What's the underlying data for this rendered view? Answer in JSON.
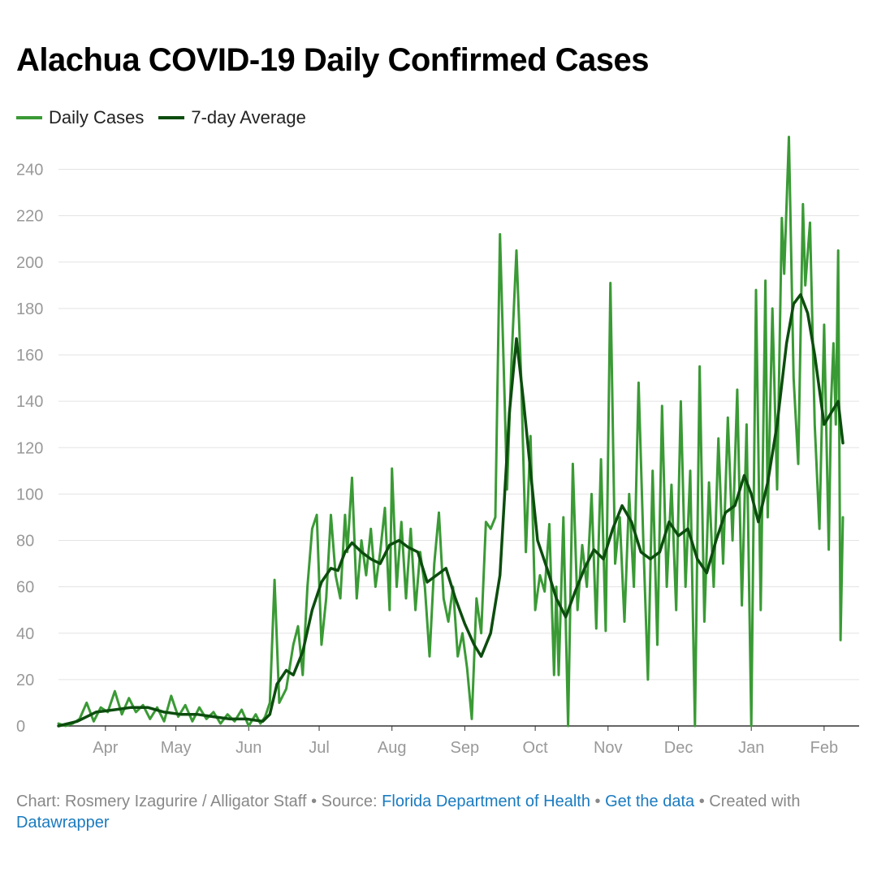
{
  "title": "Alachua COVID-19 Daily Confirmed Cases",
  "legend": [
    {
      "label": "Daily Cases",
      "color": "#3a9a35"
    },
    {
      "label": "7-day Average",
      "color": "#0c4d0e"
    }
  ],
  "footer": {
    "prefix": "Chart: Rosmery Izagurire / Alligator Staff • Source: ",
    "source_link": "Florida Department of Health",
    "sep": " • ",
    "data_link": "Get the data",
    "created": " • Created with ",
    "tool_link": "Datawrapper"
  },
  "chart_data": {
    "type": "line",
    "xlabel": "",
    "ylabel": "",
    "ylim": [
      0,
      250
    ],
    "yticks": [
      0,
      20,
      40,
      60,
      80,
      100,
      120,
      140,
      160,
      180,
      200,
      220,
      240
    ],
    "xlim": [
      "2020-03-12",
      "2021-02-03"
    ],
    "xticks": [
      {
        "label": "Apr",
        "date": "2020-04-01"
      },
      {
        "label": "May",
        "date": "2020-05-01"
      },
      {
        "label": "Jun",
        "date": "2020-06-01"
      },
      {
        "label": "Jul",
        "date": "2020-07-01"
      },
      {
        "label": "Aug",
        "date": "2020-08-01"
      },
      {
        "label": "Sep",
        "date": "2020-09-01"
      },
      {
        "label": "Oct",
        "date": "2020-10-01"
      },
      {
        "label": "Nov",
        "date": "2020-11-01"
      },
      {
        "label": "Dec",
        "date": "2020-12-01"
      },
      {
        "label": "Jan",
        "date": "2021-01-01"
      },
      {
        "label": "Feb",
        "date": "2021-02-01"
      }
    ],
    "grid": true,
    "legend_position": "top-left",
    "series": [
      {
        "name": "Daily Cases",
        "color": "#3a9a35",
        "points": [
          [
            "2020-03-12",
            1
          ],
          [
            "2020-03-15",
            0
          ],
          [
            "2020-03-18",
            1
          ],
          [
            "2020-03-21",
            3
          ],
          [
            "2020-03-24",
            10
          ],
          [
            "2020-03-27",
            2
          ],
          [
            "2020-03-30",
            8
          ],
          [
            "2020-04-02",
            6
          ],
          [
            "2020-04-05",
            15
          ],
          [
            "2020-04-08",
            5
          ],
          [
            "2020-04-11",
            12
          ],
          [
            "2020-04-14",
            6
          ],
          [
            "2020-04-17",
            9
          ],
          [
            "2020-04-20",
            3
          ],
          [
            "2020-04-23",
            8
          ],
          [
            "2020-04-26",
            2
          ],
          [
            "2020-04-29",
            13
          ],
          [
            "2020-05-02",
            4
          ],
          [
            "2020-05-05",
            9
          ],
          [
            "2020-05-08",
            2
          ],
          [
            "2020-05-11",
            8
          ],
          [
            "2020-05-14",
            3
          ],
          [
            "2020-05-17",
            6
          ],
          [
            "2020-05-20",
            1
          ],
          [
            "2020-05-23",
            5
          ],
          [
            "2020-05-26",
            2
          ],
          [
            "2020-05-29",
            7
          ],
          [
            "2020-06-01",
            0
          ],
          [
            "2020-06-04",
            5
          ],
          [
            "2020-06-06",
            1
          ],
          [
            "2020-06-08",
            4
          ],
          [
            "2020-06-10",
            10
          ],
          [
            "2020-06-12",
            63
          ],
          [
            "2020-06-14",
            10
          ],
          [
            "2020-06-17",
            16
          ],
          [
            "2020-06-20",
            35
          ],
          [
            "2020-06-22",
            43
          ],
          [
            "2020-06-24",
            22
          ],
          [
            "2020-06-26",
            60
          ],
          [
            "2020-06-28",
            85
          ],
          [
            "2020-06-30",
            91
          ],
          [
            "2020-07-02",
            35
          ],
          [
            "2020-07-04",
            55
          ],
          [
            "2020-07-06",
            91
          ],
          [
            "2020-07-08",
            65
          ],
          [
            "2020-07-10",
            55
          ],
          [
            "2020-07-12",
            91
          ],
          [
            "2020-07-13",
            75
          ],
          [
            "2020-07-15",
            107
          ],
          [
            "2020-07-17",
            55
          ],
          [
            "2020-07-19",
            80
          ],
          [
            "2020-07-21",
            65
          ],
          [
            "2020-07-23",
            85
          ],
          [
            "2020-07-25",
            60
          ],
          [
            "2020-07-27",
            75
          ],
          [
            "2020-07-29",
            94
          ],
          [
            "2020-07-31",
            50
          ],
          [
            "2020-08-01",
            111
          ],
          [
            "2020-08-03",
            60
          ],
          [
            "2020-08-05",
            88
          ],
          [
            "2020-08-07",
            55
          ],
          [
            "2020-08-09",
            85
          ],
          [
            "2020-08-11",
            50
          ],
          [
            "2020-08-13",
            75
          ],
          [
            "2020-08-15",
            60
          ],
          [
            "2020-08-17",
            30
          ],
          [
            "2020-08-19",
            70
          ],
          [
            "2020-08-21",
            92
          ],
          [
            "2020-08-23",
            55
          ],
          [
            "2020-08-25",
            45
          ],
          [
            "2020-08-27",
            60
          ],
          [
            "2020-08-29",
            30
          ],
          [
            "2020-08-31",
            40
          ],
          [
            "2020-09-02",
            25
          ],
          [
            "2020-09-04",
            3
          ],
          [
            "2020-09-06",
            55
          ],
          [
            "2020-09-08",
            40
          ],
          [
            "2020-09-10",
            88
          ],
          [
            "2020-09-12",
            85
          ],
          [
            "2020-09-14",
            90
          ],
          [
            "2020-09-16",
            212
          ],
          [
            "2020-09-18",
            140
          ],
          [
            "2020-09-19",
            102
          ],
          [
            "2020-09-21",
            160
          ],
          [
            "2020-09-23",
            205
          ],
          [
            "2020-09-25",
            150
          ],
          [
            "2020-09-27",
            75
          ],
          [
            "2020-09-29",
            125
          ],
          [
            "2020-10-01",
            50
          ],
          [
            "2020-10-03",
            65
          ],
          [
            "2020-10-05",
            58
          ],
          [
            "2020-10-07",
            87
          ],
          [
            "2020-10-09",
            22
          ],
          [
            "2020-10-10",
            60
          ],
          [
            "2020-10-11",
            22
          ],
          [
            "2020-10-13",
            90
          ],
          [
            "2020-10-15",
            0
          ],
          [
            "2020-10-17",
            113
          ],
          [
            "2020-10-19",
            50
          ],
          [
            "2020-10-21",
            78
          ],
          [
            "2020-10-23",
            60
          ],
          [
            "2020-10-25",
            100
          ],
          [
            "2020-10-27",
            42
          ],
          [
            "2020-10-29",
            115
          ],
          [
            "2020-10-31",
            41
          ],
          [
            "2020-11-02",
            191
          ],
          [
            "2020-11-04",
            70
          ],
          [
            "2020-11-06",
            90
          ],
          [
            "2020-11-08",
            45
          ],
          [
            "2020-11-10",
            100
          ],
          [
            "2020-11-12",
            60
          ],
          [
            "2020-11-14",
            148
          ],
          [
            "2020-11-16",
            80
          ],
          [
            "2020-11-18",
            20
          ],
          [
            "2020-11-20",
            110
          ],
          [
            "2020-11-22",
            35
          ],
          [
            "2020-11-24",
            138
          ],
          [
            "2020-11-26",
            60
          ],
          [
            "2020-11-28",
            104
          ],
          [
            "2020-11-30",
            50
          ],
          [
            "2020-12-02",
            140
          ],
          [
            "2020-12-04",
            60
          ],
          [
            "2020-12-06",
            110
          ],
          [
            "2020-12-08",
            0
          ],
          [
            "2020-12-10",
            155
          ],
          [
            "2020-12-12",
            45
          ],
          [
            "2020-12-14",
            105
          ],
          [
            "2020-12-16",
            60
          ],
          [
            "2020-12-18",
            124
          ],
          [
            "2020-12-20",
            70
          ],
          [
            "2020-12-22",
            133
          ],
          [
            "2020-12-24",
            80
          ],
          [
            "2020-12-26",
            145
          ],
          [
            "2020-12-28",
            52
          ],
          [
            "2020-12-30",
            130
          ],
          [
            "2021-01-01",
            0
          ],
          [
            "2021-01-03",
            188
          ],
          [
            "2021-01-05",
            50
          ],
          [
            "2021-01-07",
            192
          ],
          [
            "2021-01-08",
            90
          ],
          [
            "2021-01-10",
            180
          ],
          [
            "2021-01-12",
            102
          ],
          [
            "2021-01-14",
            219
          ],
          [
            "2021-01-15",
            195
          ],
          [
            "2021-01-17",
            254
          ],
          [
            "2021-01-19",
            150
          ],
          [
            "2021-01-21",
            113
          ],
          [
            "2021-01-23",
            225
          ],
          [
            "2021-01-24",
            190
          ],
          [
            "2021-01-26",
            217
          ],
          [
            "2021-01-28",
            130
          ],
          [
            "2021-01-30",
            85
          ],
          [
            "2021-02-01",
            173
          ],
          [
            "2021-02-03",
            76
          ],
          [
            "2021-02-04",
            140
          ],
          [
            "2021-02-05",
            165
          ],
          [
            "2021-02-06",
            130
          ],
          [
            "2021-02-07",
            205
          ],
          [
            "2021-02-08",
            37
          ],
          [
            "2021-02-09",
            90
          ]
        ]
      },
      {
        "name": "7-day Average",
        "color": "#0c4d0e",
        "points": [
          [
            "2020-03-12",
            0
          ],
          [
            "2020-03-20",
            2
          ],
          [
            "2020-03-28",
            6
          ],
          [
            "2020-04-05",
            7
          ],
          [
            "2020-04-12",
            8
          ],
          [
            "2020-04-19",
            8
          ],
          [
            "2020-04-26",
            6
          ],
          [
            "2020-05-03",
            5
          ],
          [
            "2020-05-10",
            5
          ],
          [
            "2020-05-17",
            4
          ],
          [
            "2020-05-24",
            3
          ],
          [
            "2020-05-31",
            3
          ],
          [
            "2020-06-07",
            2
          ],
          [
            "2020-06-10",
            5
          ],
          [
            "2020-06-13",
            18
          ],
          [
            "2020-06-17",
            24
          ],
          [
            "2020-06-20",
            22
          ],
          [
            "2020-06-24",
            32
          ],
          [
            "2020-06-28",
            50
          ],
          [
            "2020-07-02",
            62
          ],
          [
            "2020-07-06",
            68
          ],
          [
            "2020-07-09",
            67
          ],
          [
            "2020-07-12",
            75
          ],
          [
            "2020-07-15",
            79
          ],
          [
            "2020-07-19",
            75
          ],
          [
            "2020-07-23",
            72
          ],
          [
            "2020-07-27",
            70
          ],
          [
            "2020-07-31",
            78
          ],
          [
            "2020-08-04",
            80
          ],
          [
            "2020-08-08",
            77
          ],
          [
            "2020-08-12",
            75
          ],
          [
            "2020-08-16",
            62
          ],
          [
            "2020-08-20",
            65
          ],
          [
            "2020-08-24",
            68
          ],
          [
            "2020-08-28",
            55
          ],
          [
            "2020-09-01",
            44
          ],
          [
            "2020-09-05",
            35
          ],
          [
            "2020-09-08",
            30
          ],
          [
            "2020-09-12",
            40
          ],
          [
            "2020-09-16",
            65
          ],
          [
            "2020-09-20",
            135
          ],
          [
            "2020-09-23",
            167
          ],
          [
            "2020-09-26",
            140
          ],
          [
            "2020-09-29",
            110
          ],
          [
            "2020-10-02",
            80
          ],
          [
            "2020-10-06",
            68
          ],
          [
            "2020-10-10",
            55
          ],
          [
            "2020-10-14",
            47
          ],
          [
            "2020-10-18",
            58
          ],
          [
            "2020-10-22",
            68
          ],
          [
            "2020-10-26",
            76
          ],
          [
            "2020-10-30",
            72
          ],
          [
            "2020-11-03",
            85
          ],
          [
            "2020-11-07",
            95
          ],
          [
            "2020-11-11",
            88
          ],
          [
            "2020-11-15",
            75
          ],
          [
            "2020-11-19",
            72
          ],
          [
            "2020-11-23",
            75
          ],
          [
            "2020-11-27",
            88
          ],
          [
            "2020-12-01",
            82
          ],
          [
            "2020-12-05",
            85
          ],
          [
            "2020-12-09",
            72
          ],
          [
            "2020-12-13",
            66
          ],
          [
            "2020-12-17",
            80
          ],
          [
            "2020-12-21",
            92
          ],
          [
            "2020-12-25",
            95
          ],
          [
            "2020-12-29",
            108
          ],
          [
            "2021-01-01",
            100
          ],
          [
            "2021-01-04",
            88
          ],
          [
            "2021-01-08",
            105
          ],
          [
            "2021-01-12",
            130
          ],
          [
            "2021-01-16",
            165
          ],
          [
            "2021-01-19",
            182
          ],
          [
            "2021-01-22",
            186
          ],
          [
            "2021-01-25",
            178
          ],
          [
            "2021-01-28",
            160
          ],
          [
            "2021-02-01",
            130
          ],
          [
            "2021-02-04",
            135
          ],
          [
            "2021-02-07",
            140
          ],
          [
            "2021-02-09",
            122
          ]
        ]
      }
    ]
  }
}
